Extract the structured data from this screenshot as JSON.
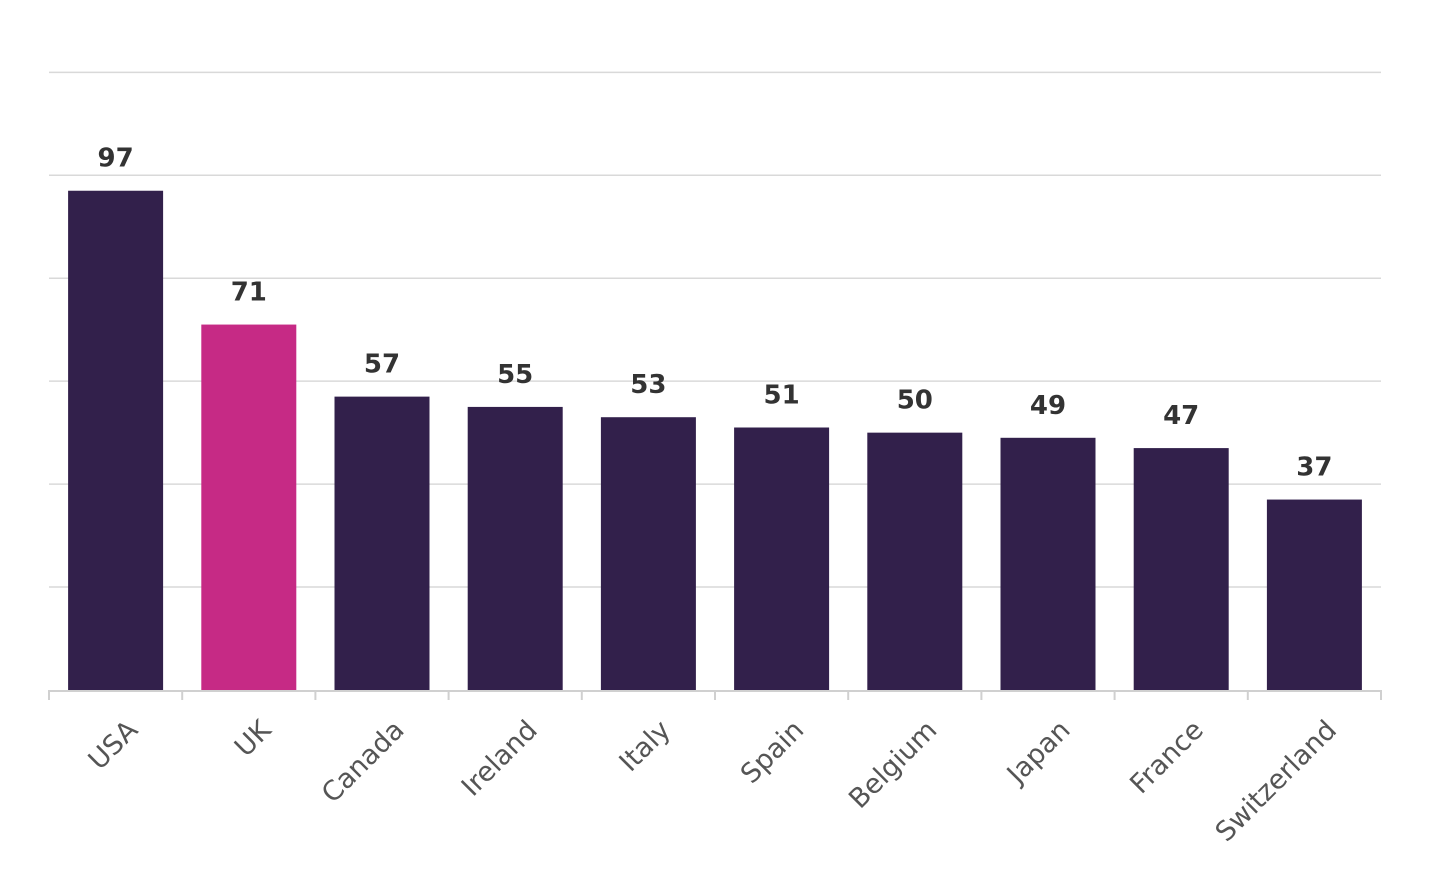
{
  "chart_data": {
    "type": "bar",
    "categories": [
      "USA",
      "UK",
      "Canada",
      "Ireland",
      "Italy",
      "Spain",
      "Belgium",
      "Japan",
      "France",
      "Switzerland"
    ],
    "values": [
      97,
      71,
      57,
      55,
      53,
      51,
      50,
      49,
      47,
      37
    ],
    "highlight_index": 1,
    "ylim": [
      0,
      120
    ],
    "y_grid_step": 20,
    "grid": true,
    "y_tick_labels_visible": false,
    "title": "",
    "xlabel": "",
    "ylabel": "",
    "colors": {
      "bar": "#32204b",
      "highlight": "#c62a85",
      "grid": "#d9d9d9",
      "axis": "#d0d0d0",
      "data_label": "#333333",
      "tick_label": "#555555"
    }
  }
}
